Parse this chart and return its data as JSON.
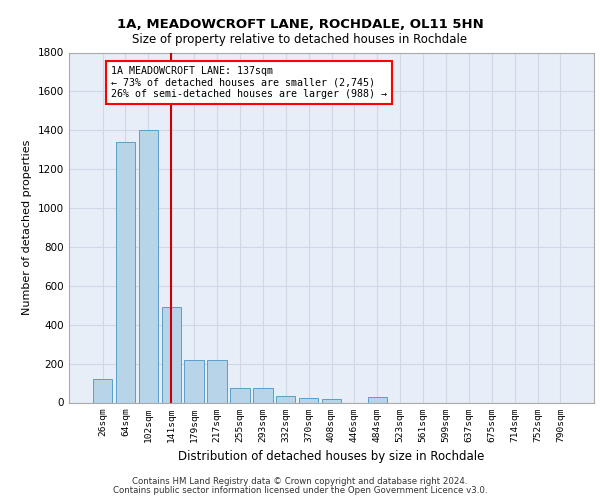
{
  "title": "1A, MEADOWCROFT LANE, ROCHDALE, OL11 5HN",
  "subtitle": "Size of property relative to detached houses in Rochdale",
  "xlabel": "Distribution of detached houses by size in Rochdale",
  "ylabel": "Number of detached properties",
  "categories": [
    "26sqm",
    "64sqm",
    "102sqm",
    "141sqm",
    "179sqm",
    "217sqm",
    "255sqm",
    "293sqm",
    "332sqm",
    "370sqm",
    "408sqm",
    "446sqm",
    "484sqm",
    "523sqm",
    "561sqm",
    "599sqm",
    "637sqm",
    "675sqm",
    "714sqm",
    "752sqm",
    "790sqm"
  ],
  "values": [
    120,
    1340,
    1400,
    490,
    220,
    220,
    75,
    75,
    35,
    25,
    20,
    0,
    30,
    0,
    0,
    0,
    0,
    0,
    0,
    0,
    0
  ],
  "bar_color": "#b8d4e8",
  "bar_edge_color": "#5a9ec9",
  "highlight_bar_index": 3,
  "highlight_color": "#cc0000",
  "ylim": [
    0,
    1800
  ],
  "yticks": [
    0,
    200,
    400,
    600,
    800,
    1000,
    1200,
    1400,
    1600,
    1800
  ],
  "annotation_line1": "1A MEADOWCROFT LANE: 137sqm",
  "annotation_line2": "← 73% of detached houses are smaller (2,745)",
  "annotation_line3": "26% of semi-detached houses are larger (988) →",
  "grid_color": "#d0d8e8",
  "bg_color": "#e8eef8",
  "footer1": "Contains HM Land Registry data © Crown copyright and database right 2024.",
  "footer2": "Contains public sector information licensed under the Open Government Licence v3.0."
}
